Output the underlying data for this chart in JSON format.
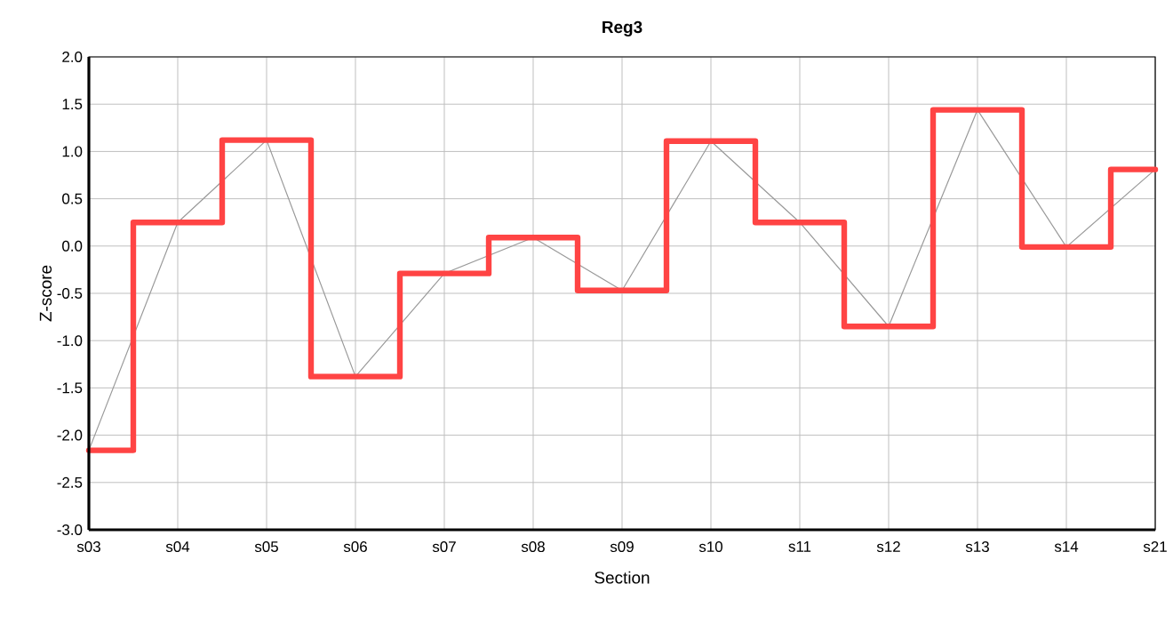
{
  "chart_data": {
    "type": "line",
    "title": "Reg3",
    "xlabel": "Section",
    "ylabel": "Z-score",
    "categories": [
      "s03",
      "s04",
      "s05",
      "s06",
      "s07",
      "s08",
      "s09",
      "s10",
      "s11",
      "s12",
      "s13",
      "s14",
      "s21"
    ],
    "series": [
      {
        "type": "step",
        "color": "#ff4444",
        "values": [
          -2.16,
          0.25,
          1.12,
          -1.38,
          -0.29,
          0.09,
          -0.47,
          1.11,
          0.25,
          -0.85,
          1.44,
          -0.01,
          0.81
        ]
      },
      {
        "color": "#999999",
        "values": [
          -2.16,
          0.25,
          1.12,
          -1.38,
          -0.29,
          0.09,
          -0.47,
          1.11,
          0.25,
          -0.85,
          1.44,
          -0.01,
          0.81
        ]
      }
    ],
    "ylim": [
      -3.0,
      2.0
    ],
    "yticks": [
      {
        "value": -3.0,
        "label": "-3.0"
      },
      {
        "value": -2.5,
        "label": "-2.5"
      },
      {
        "value": -2.0,
        "label": "-2.0"
      },
      {
        "value": -1.5,
        "label": "-1.5"
      },
      {
        "value": -1.0,
        "label": "-1.0"
      },
      {
        "value": -0.5,
        "label": "-0.5"
      },
      {
        "value": 0.0,
        "label": "0.0"
      },
      {
        "value": 0.5,
        "label": "0.5"
      },
      {
        "value": 1.0,
        "label": "1.0"
      },
      {
        "value": 1.5,
        "label": "1.5"
      },
      {
        "value": 2.0,
        "label": "2.0"
      }
    ],
    "grid": true
  }
}
